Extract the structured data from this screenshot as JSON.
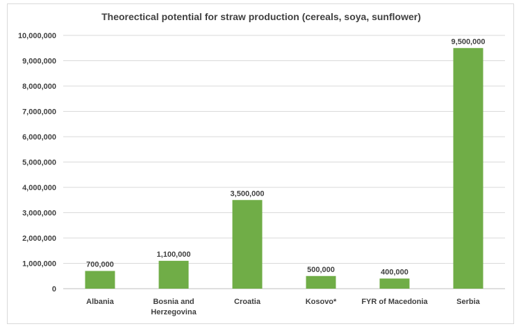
{
  "chart_data": {
    "type": "bar",
    "title": "Theorectical potential for straw production (cereals, soya, sunflower)",
    "xlabel": "",
    "ylabel": "",
    "categories": [
      "Albania",
      "Bosnia and Herzegovina",
      "Croatia",
      "Kosovo*",
      "FYR of Macedonia",
      "Serbia"
    ],
    "category_lines": [
      [
        "Albania"
      ],
      [
        "Bosnia and",
        "Herzegovina"
      ],
      [
        "Croatia"
      ],
      [
        "Kosovo*"
      ],
      [
        "FYR of Macedonia"
      ],
      [
        "Serbia"
      ]
    ],
    "values": [
      700000,
      1100000,
      3500000,
      500000,
      400000,
      9500000
    ],
    "data_labels": [
      "700,000",
      "1,100,000",
      "3,500,000",
      "500,000",
      "400,000",
      "9,500,000"
    ],
    "ylim": [
      0,
      10000000
    ],
    "y_ticks": [
      0,
      1000000,
      2000000,
      3000000,
      4000000,
      5000000,
      6000000,
      7000000,
      8000000,
      9000000,
      10000000
    ],
    "y_tick_labels": [
      "0",
      "1,000,000",
      "2,000,000",
      "3,000,000",
      "4,000,000",
      "5,000,000",
      "6,000,000",
      "7,000,000",
      "8,000,000",
      "9,000,000",
      "10,000,000"
    ],
    "grid": true,
    "legend": "none",
    "colors": {
      "bar": "#70ad47",
      "grid": "#d9d9d9",
      "text": "#404040"
    }
  }
}
